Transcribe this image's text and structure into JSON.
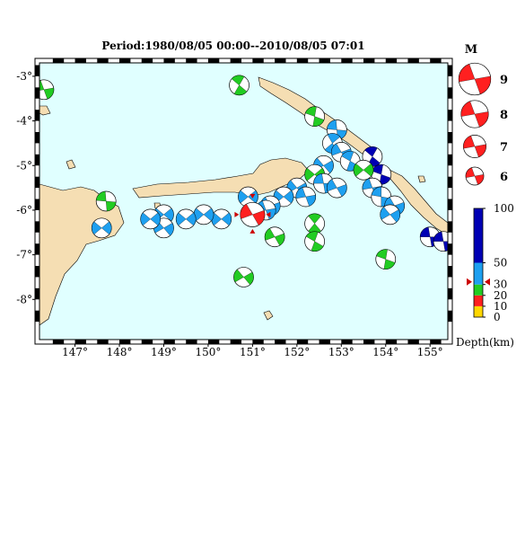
{
  "title": "Period:1980/08/05 00:00--2010/08/05 07:01",
  "map": {
    "lon_range": [
      146.2,
      155.4
    ],
    "lat_range": [
      -8.9,
      -2.7
    ],
    "x_ticks": [
      {
        "value": 147,
        "label": "147°"
      },
      {
        "value": 148,
        "label": "148°"
      },
      {
        "value": 149,
        "label": "149°"
      },
      {
        "value": 150,
        "label": "150°"
      },
      {
        "value": 151,
        "label": "151°"
      },
      {
        "value": 152,
        "label": "152°"
      },
      {
        "value": 153,
        "label": "153°"
      },
      {
        "value": 154,
        "label": "154°"
      },
      {
        "value": 155,
        "label": "155°"
      }
    ],
    "y_ticks": [
      {
        "value": -3,
        "label": "-3°"
      },
      {
        "value": -4,
        "label": "-4°"
      },
      {
        "value": -5,
        "label": "-5°"
      },
      {
        "value": -6,
        "label": "-6°"
      },
      {
        "value": -7,
        "label": "-7°"
      },
      {
        "value": -8,
        "label": "-8°"
      }
    ],
    "colors": {
      "sea": "#e0ffff",
      "land": "#f5deb3",
      "coast": "#000000"
    }
  },
  "magnitude_legend": {
    "title": "M",
    "items": [
      {
        "label": "9",
        "mag": 9
      },
      {
        "label": "8",
        "mag": 8
      },
      {
        "label": "7",
        "mag": 7
      },
      {
        "label": "6",
        "mag": 6
      }
    ]
  },
  "depth_legend": {
    "title": "Depth(km)",
    "labels": [
      "100",
      "50",
      "30",
      "20",
      "10",
      "0"
    ],
    "bands": [
      {
        "from": 0,
        "to": 10,
        "color": "#ffd700"
      },
      {
        "from": 10,
        "to": 20,
        "color": "#ff2020"
      },
      {
        "from": 20,
        "to": 30,
        "color": "#22cc22"
      },
      {
        "from": 30,
        "to": 50,
        "color": "#1ea0f0"
      },
      {
        "from": 50,
        "to": 100,
        "color": "#0000b4"
      }
    ],
    "marker_depth": 30
  },
  "main_event": {
    "lon": 151.0,
    "lat": -6.1,
    "depth": 15,
    "mag": 7,
    "color": "#ff2020"
  },
  "events": [
    {
      "lon": 146.3,
      "lat": -3.3,
      "depth": 25,
      "mag": 6,
      "rot": 30
    },
    {
      "lon": 150.7,
      "lat": -3.2,
      "depth": 25,
      "mag": 6,
      "rot": 80
    },
    {
      "lon": 152.4,
      "lat": -3.9,
      "depth": 25,
      "mag": 6,
      "rot": 60
    },
    {
      "lon": 152.9,
      "lat": -4.2,
      "depth": 40,
      "mag": 6,
      "rot": 45
    },
    {
      "lon": 152.8,
      "lat": -4.5,
      "depth": 40,
      "mag": 6,
      "rot": 100
    },
    {
      "lon": 153.0,
      "lat": -4.7,
      "depth": 40,
      "mag": 6,
      "rot": 20
    },
    {
      "lon": 153.2,
      "lat": -4.9,
      "depth": 40,
      "mag": 6,
      "rot": 70
    },
    {
      "lon": 152.6,
      "lat": -5.0,
      "depth": 40,
      "mag": 6,
      "rot": 10
    },
    {
      "lon": 153.7,
      "lat": -4.8,
      "depth": 70,
      "mag": 6,
      "rot": 80
    },
    {
      "lon": 153.9,
      "lat": -5.2,
      "depth": 70,
      "mag": 6,
      "rot": 60
    },
    {
      "lon": 153.5,
      "lat": -5.1,
      "depth": 25,
      "mag": 6,
      "rot": 0
    },
    {
      "lon": 153.7,
      "lat": -5.5,
      "depth": 40,
      "mag": 6,
      "rot": 30
    },
    {
      "lon": 153.9,
      "lat": -5.7,
      "depth": 40,
      "mag": 6,
      "rot": 50
    },
    {
      "lon": 154.2,
      "lat": -5.9,
      "depth": 40,
      "mag": 6,
      "rot": 20
    },
    {
      "lon": 154.1,
      "lat": -6.1,
      "depth": 40,
      "mag": 6,
      "rot": 10
    },
    {
      "lon": 152.4,
      "lat": -5.2,
      "depth": 25,
      "mag": 6,
      "rot": 0
    },
    {
      "lon": 152.6,
      "lat": -5.4,
      "depth": 40,
      "mag": 6,
      "rot": 40
    },
    {
      "lon": 152.9,
      "lat": -5.5,
      "depth": 40,
      "mag": 6,
      "rot": 20
    },
    {
      "lon": 152.0,
      "lat": -5.5,
      "depth": 40,
      "mag": 6,
      "rot": 10
    },
    {
      "lon": 152.2,
      "lat": -5.7,
      "depth": 35,
      "mag": 6,
      "rot": 30
    },
    {
      "lon": 151.7,
      "lat": -5.7,
      "depth": 40,
      "mag": 6,
      "rot": 0
    },
    {
      "lon": 151.4,
      "lat": -5.9,
      "depth": 40,
      "mag": 6,
      "rot": 20
    },
    {
      "lon": 150.9,
      "lat": -5.7,
      "depth": 35,
      "mag": 6,
      "rot": 0
    },
    {
      "lon": 151.3,
      "lat": -6.0,
      "depth": 40,
      "mag": 6,
      "rot": 30
    },
    {
      "lon": 150.3,
      "lat": -6.2,
      "depth": 40,
      "mag": 6,
      "rot": 0
    },
    {
      "lon": 149.9,
      "lat": -6.1,
      "depth": 40,
      "mag": 6,
      "rot": 0
    },
    {
      "lon": 149.5,
      "lat": -6.2,
      "depth": 40,
      "mag": 6,
      "rot": 0
    },
    {
      "lon": 149.0,
      "lat": -6.1,
      "depth": 40,
      "mag": 6,
      "rot": 0
    },
    {
      "lon": 149.0,
      "lat": -6.4,
      "depth": 40,
      "mag": 6,
      "rot": 10
    },
    {
      "lon": 148.7,
      "lat": -6.2,
      "depth": 40,
      "mag": 6,
      "rot": 0
    },
    {
      "lon": 147.6,
      "lat": -6.4,
      "depth": 40,
      "mag": 6,
      "rot": 0
    },
    {
      "lon": 147.7,
      "lat": -5.8,
      "depth": 25,
      "mag": 6,
      "rot": 45
    },
    {
      "lon": 151.5,
      "lat": -6.6,
      "depth": 25,
      "mag": 6,
      "rot": 20
    },
    {
      "lon": 152.4,
      "lat": -6.3,
      "depth": 25,
      "mag": 6,
      "rot": 90
    },
    {
      "lon": 152.4,
      "lat": -6.7,
      "depth": 25,
      "mag": 6,
      "rot": 70
    },
    {
      "lon": 150.8,
      "lat": -7.5,
      "depth": 25,
      "mag": 6,
      "rot": 10
    },
    {
      "lon": 154.0,
      "lat": -7.1,
      "depth": 25,
      "mag": 6,
      "rot": 60
    },
    {
      "lon": 155.0,
      "lat": -6.6,
      "depth": 70,
      "mag": 6,
      "rot": 40
    },
    {
      "lon": 155.3,
      "lat": -6.7,
      "depth": 70,
      "mag": 6,
      "rot": 40
    }
  ]
}
